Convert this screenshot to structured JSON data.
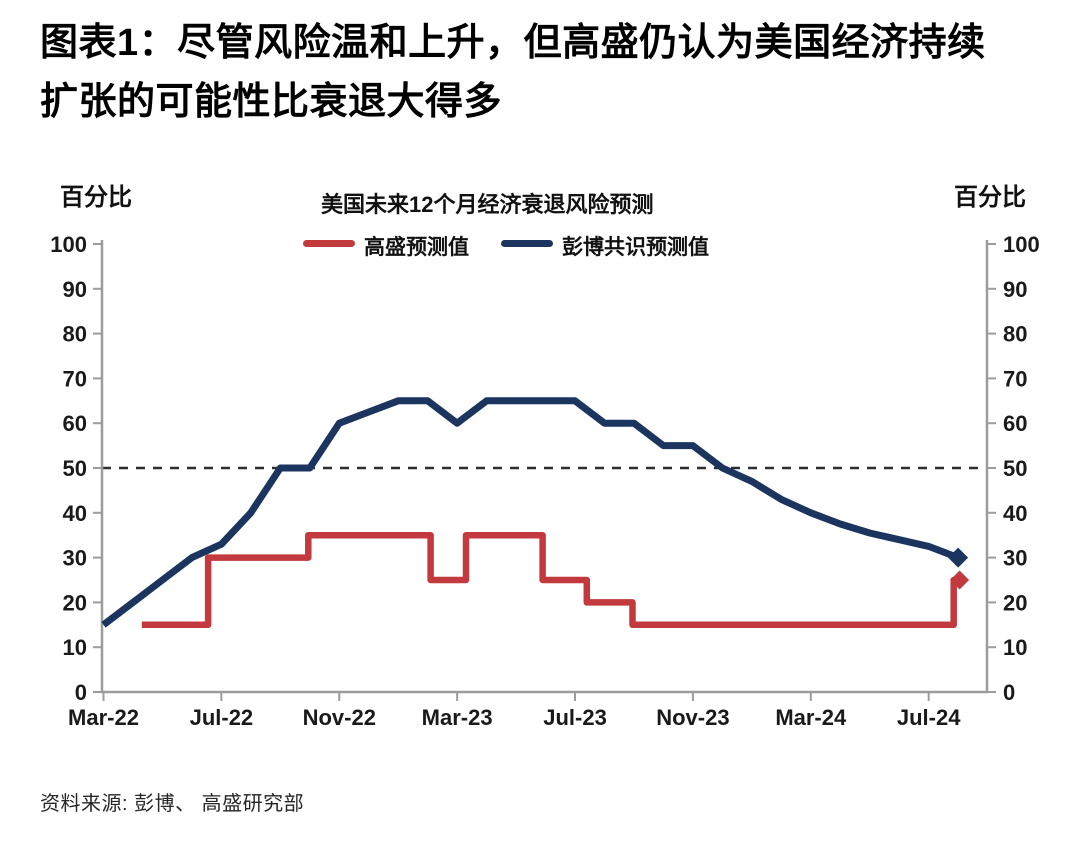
{
  "title": {
    "line1": "图表1：尽管风险温和上升，但高盛仍认为美国经济持续",
    "line2": "扩张的可能性比衰退大得多"
  },
  "source_note": "资料来源: 彭博、 高盛研究部",
  "chart_data": {
    "type": "line",
    "title": "美国未来12个月经济衰退风险预测",
    "ylabel_left": "百分比",
    "ylabel_right": "百分比",
    "ylim": [
      0,
      100
    ],
    "y_ticks": [
      0,
      10,
      20,
      30,
      40,
      50,
      60,
      70,
      80,
      90,
      100
    ],
    "x_unit": "months since Mar-2022",
    "x_tick_labels": [
      "Mar-22",
      "Jul-22",
      "Nov-22",
      "Mar-23",
      "Jul-23",
      "Nov-23",
      "Mar-24",
      "Jul-24"
    ],
    "x_tick_months": [
      0,
      4,
      8,
      12,
      16,
      20,
      24,
      28
    ],
    "x_range_months": [
      0,
      30
    ],
    "grid": false,
    "legend_position": "top-center-above-plot",
    "reference_line": {
      "value": 50,
      "style": "dashed",
      "color": "#2e2e2e"
    },
    "series": [
      {
        "name": "高盛预测值",
        "color": "#c23a3e",
        "line_style": "step",
        "end_marker": "diamond",
        "points": [
          [
            1.3,
            15
          ],
          [
            3.55,
            15
          ],
          [
            3.55,
            30
          ],
          [
            6.95,
            30
          ],
          [
            6.95,
            35
          ],
          [
            11.1,
            35
          ],
          [
            11.1,
            25
          ],
          [
            12.3,
            25
          ],
          [
            12.3,
            35
          ],
          [
            14.9,
            35
          ],
          [
            14.9,
            25
          ],
          [
            16.4,
            25
          ],
          [
            16.4,
            20
          ],
          [
            17.95,
            20
          ],
          [
            17.95,
            15
          ],
          [
            28.85,
            15
          ],
          [
            28.85,
            25
          ],
          [
            29.05,
            25
          ]
        ]
      },
      {
        "name": "彭博共识预测值",
        "color": "#1c355e",
        "line_style": "line",
        "end_marker": "diamond",
        "x_months": [
          0,
          1,
          2,
          3,
          4,
          5,
          6,
          7,
          8,
          9,
          10,
          11,
          12,
          13,
          14,
          15,
          16,
          17,
          18,
          19,
          20,
          21,
          22,
          23,
          24,
          25,
          26,
          27,
          28,
          29
        ],
        "values": [
          15,
          20,
          25,
          30,
          33,
          40,
          50,
          50,
          60,
          62.5,
          65,
          65,
          60,
          65,
          65,
          65,
          65,
          60,
          60,
          55,
          55,
          50,
          47,
          43,
          40,
          37.5,
          35.5,
          34,
          32.5,
          30
        ]
      }
    ]
  }
}
